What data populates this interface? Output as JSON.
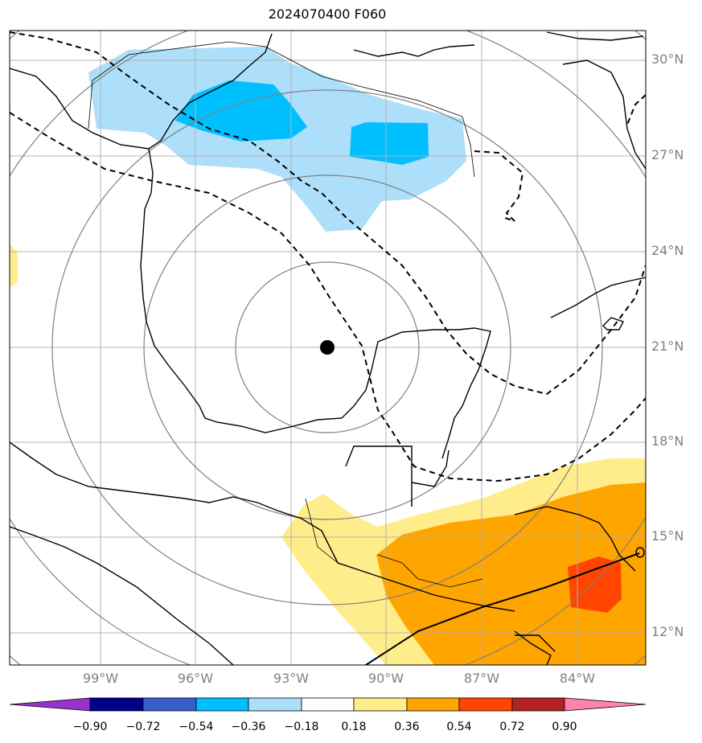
{
  "title": "2024070400 F060",
  "lat_labels": [
    "30°N",
    "27°N",
    "24°N",
    "21°N",
    "18°N",
    "15°N",
    "12°N"
  ],
  "lon_labels": [
    "99°W",
    "96°W",
    "93°W",
    "90°W",
    "87°W",
    "84°W"
  ],
  "colorbar": {
    "ticks": [
      "−0.90",
      "−0.72",
      "−0.54",
      "−0.36",
      "−0.18",
      "0.18",
      "0.36",
      "0.54",
      "0.72",
      "0.90"
    ],
    "colors": [
      "#9932CC",
      "#00008B",
      "#3A5FCD",
      "#00BFFF",
      "#ADDFFA",
      "#FFFFFF",
      "#FFEC8B",
      "#FFA500",
      "#FF4500",
      "#B22222",
      "#FF82AB"
    ]
  },
  "center_marker": {
    "lat": 21.0,
    "lon": -91.8
  }
}
